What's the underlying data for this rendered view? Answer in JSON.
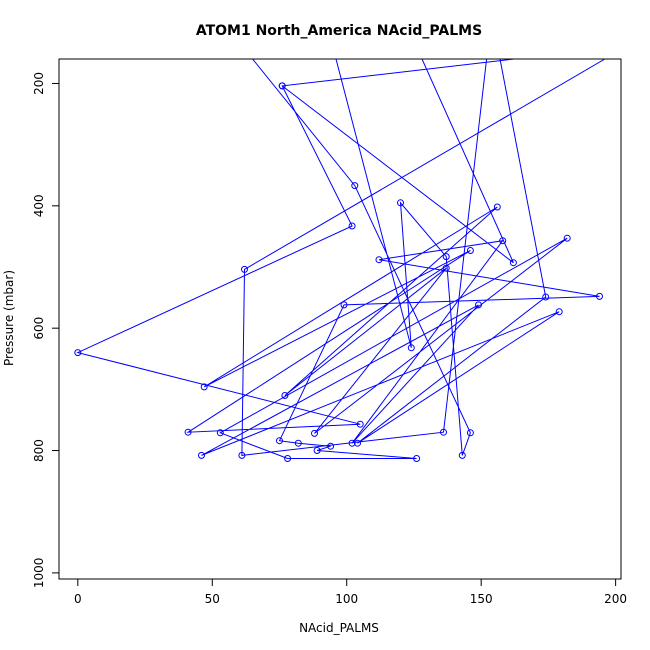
{
  "chart_data": {
    "type": "line",
    "title": "ATOM1 North_America NAcid_PALMS",
    "xlabel": "NAcid_PALMS",
    "ylabel": "Pressure (mbar)",
    "xlim": [
      -7,
      202
    ],
    "ylim": [
      1010,
      160
    ],
    "y_axis_inverted": true,
    "x_ticks": [
      0,
      50,
      100,
      150,
      200
    ],
    "y_ticks": [
      200,
      400,
      600,
      800,
      1000
    ],
    "grid": false,
    "legend": "none",
    "series": [
      {
        "color": "#0000ff",
        "marker": "open-circle",
        "points": [
          [
            182,
            150
          ],
          [
            76,
            204
          ],
          [
            102,
            433
          ],
          [
            0,
            640
          ],
          [
            105,
            757
          ],
          [
            41,
            770
          ],
          [
            146,
            473
          ],
          [
            47,
            696
          ],
          [
            156,
            402
          ],
          [
            77,
            710
          ],
          [
            137,
            502
          ],
          [
            88,
            772
          ],
          [
            182,
            453
          ],
          [
            53,
            771
          ],
          [
            78,
            813
          ],
          [
            126,
            813
          ],
          [
            89,
            800
          ],
          [
            94,
            793
          ],
          [
            82,
            788
          ],
          [
            75,
            784
          ],
          [
            99,
            562
          ],
          [
            194,
            548
          ],
          [
            112,
            488
          ],
          [
            158,
            457
          ],
          [
            102,
            788
          ],
          [
            149,
            562
          ],
          [
            46,
            808
          ],
          [
            179,
            573
          ],
          [
            104,
            788
          ],
          [
            174,
            549
          ],
          [
            157,
            160
          ]
        ]
      },
      {
        "color": "#0000ff",
        "marker": "open-circle",
        "points": [
          [
            96,
            160
          ],
          [
            124,
            632
          ],
          [
            120,
            395
          ],
          [
            137,
            483
          ],
          [
            143,
            808
          ],
          [
            146,
            771
          ],
          [
            103,
            367
          ],
          [
            65,
            160
          ]
        ]
      },
      {
        "color": "#0000ff",
        "marker": "open-circle",
        "points": [
          [
            196,
            160
          ],
          [
            62,
            504
          ],
          [
            61,
            808
          ],
          [
            136,
            770
          ],
          [
            152,
            160
          ]
        ]
      },
      {
        "color": "#0000ff",
        "marker": "open-circle",
        "points": [
          [
            76,
            204
          ],
          [
            162,
            493
          ],
          [
            128,
            160
          ]
        ]
      }
    ]
  }
}
